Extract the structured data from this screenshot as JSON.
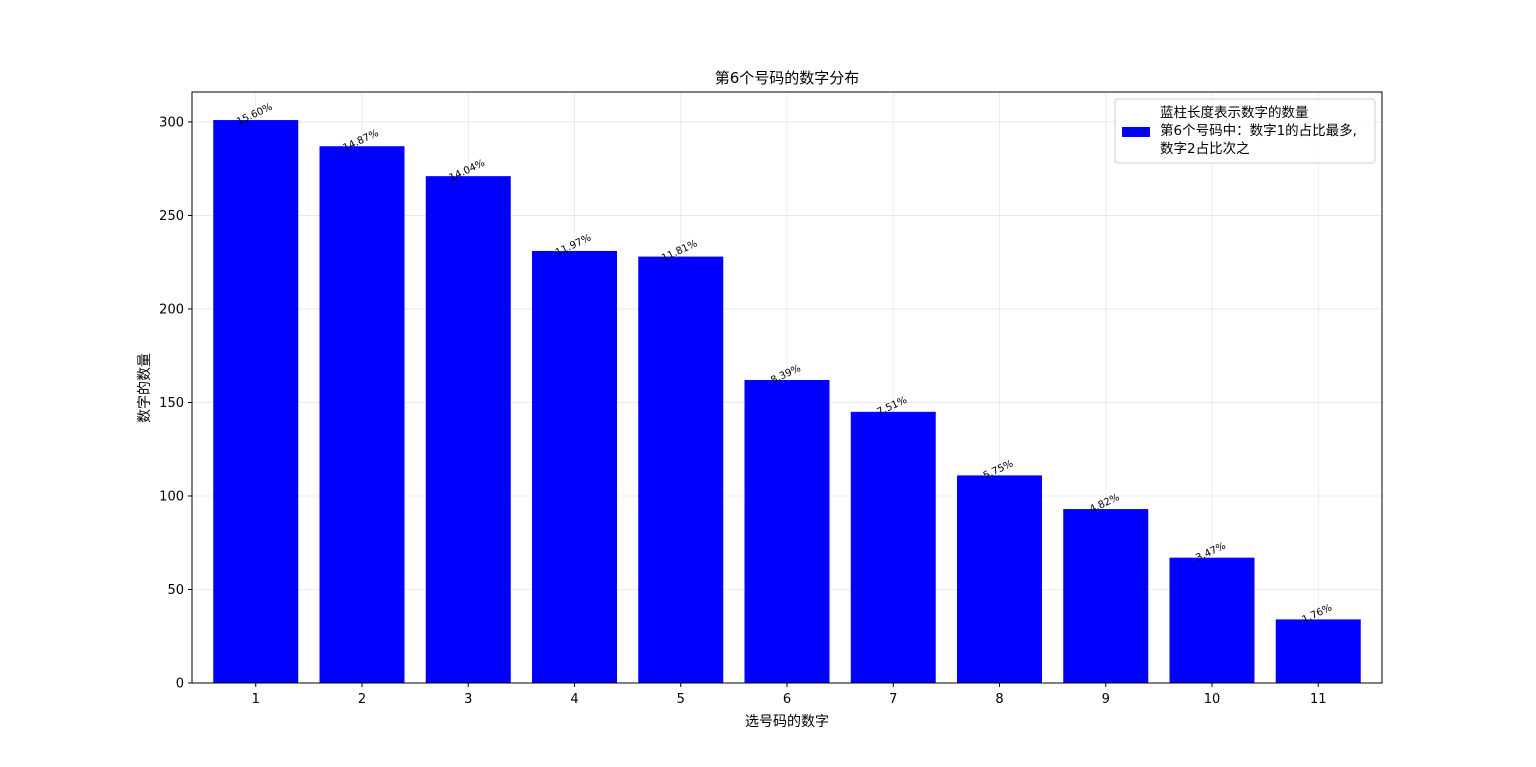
{
  "chart_data": {
    "type": "bar",
    "title": "第6个号码的数字分布",
    "xlabel": "选号码的数字",
    "ylabel": "数字的数量",
    "categories": [
      "1",
      "2",
      "3",
      "4",
      "5",
      "6",
      "7",
      "8",
      "9",
      "10",
      "11"
    ],
    "values": [
      301,
      287,
      271,
      231,
      228,
      162,
      145,
      111,
      93,
      67,
      34
    ],
    "data_labels": [
      "15.60%",
      "14.87%",
      "14.04%",
      "11.97%",
      "11.81%",
      "8.39%",
      "7.51%",
      "5.75%",
      "4.82%",
      "3.47%",
      "1.76%"
    ],
    "ylim": [
      0,
      316
    ],
    "yticks": [
      0,
      50,
      100,
      150,
      200,
      250,
      300
    ],
    "grid": true,
    "bar_color": "#0000ff",
    "legend": {
      "placement": "top-right",
      "lines": [
        "蓝柱长度表示数字的数量",
        "第6个号码中：数字1的占比最多,",
        "数字2占比次之"
      ]
    }
  }
}
